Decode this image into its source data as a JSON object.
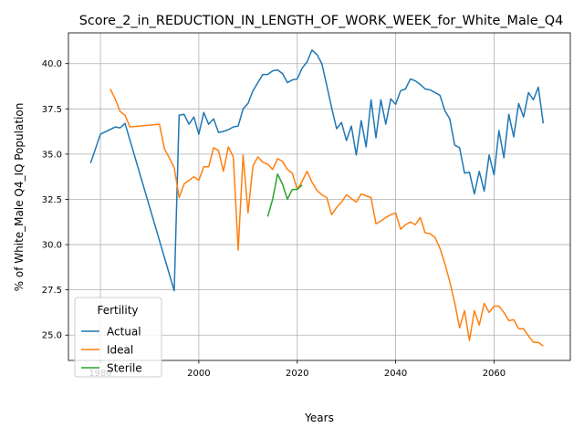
{
  "chart_data": {
    "type": "line",
    "title": "Score_2_in_REDUCTION_IN_LENGTH_OF_WORK_WEEK_for_White_Male_Q4",
    "xlabel": "Years",
    "ylabel": "% of White_Male Q4_IQ Population",
    "xlim": [
      1973.5,
      2075.5
    ],
    "ylim": [
      23.6,
      41.7
    ],
    "xticks": [
      1980,
      2000,
      2020,
      2040,
      2060
    ],
    "yticks": [
      25.0,
      27.5,
      30.0,
      32.5,
      35.0,
      37.5,
      40.0
    ],
    "grid": true,
    "legend": {
      "title": "Fertility",
      "placement": "lower-left"
    },
    "series": [
      {
        "name": "Actual",
        "color": "#1f77b4",
        "x": [
          1978,
          1980,
          1983,
          1984,
          1985,
          1995,
          1996,
          1997,
          1998,
          1999,
          2000,
          2001,
          2002,
          2003,
          2004,
          2005,
          2006,
          2007,
          2008,
          2009,
          2010,
          2011,
          2012,
          2013,
          2014,
          2015,
          2016,
          2017,
          2018,
          2019,
          2020,
          2021,
          2022,
          2023,
          2024,
          2025,
          2026,
          2027,
          2028,
          2029,
          2030,
          2031,
          2032,
          2033,
          2034,
          2035,
          2036,
          2037,
          2038,
          2039,
          2040,
          2041,
          2042,
          2043,
          2044,
          2045,
          2046,
          2047,
          2048,
          2049,
          2050,
          2051,
          2052,
          2053,
          2054,
          2055,
          2056,
          2057,
          2058,
          2059,
          2060,
          2061,
          2062,
          2063,
          2064,
          2065,
          2066,
          2067,
          2068,
          2069,
          2070
        ],
        "y": [
          34.5,
          36.1,
          36.5,
          36.45,
          36.7,
          27.45,
          37.15,
          37.2,
          36.65,
          37.05,
          36.1,
          37.3,
          36.65,
          36.95,
          36.2,
          36.25,
          36.35,
          36.5,
          36.55,
          37.5,
          37.8,
          38.5,
          38.95,
          39.4,
          39.4,
          39.6,
          39.65,
          39.45,
          38.95,
          39.1,
          39.15,
          39.75,
          40.1,
          40.75,
          40.5,
          40.0,
          38.8,
          37.55,
          36.4,
          36.75,
          35.75,
          36.55,
          34.95,
          36.85,
          35.4,
          38.0,
          35.9,
          38.0,
          36.65,
          38.05,
          37.75,
          38.5,
          38.6,
          39.15,
          39.05,
          38.85,
          38.6,
          38.55,
          38.4,
          38.25,
          37.4,
          36.95,
          35.5,
          35.35,
          33.95,
          34.0,
          32.8,
          34.05,
          32.95,
          34.95,
          33.85,
          36.3,
          34.8,
          37.2,
          35.95,
          37.8,
          37.05,
          38.4,
          38.0,
          38.7,
          36.7
        ]
      },
      {
        "name": "Ideal",
        "color": "#ff7f0e",
        "x": [
          1982,
          1983,
          1984,
          1985,
          1986,
          1992,
          1993,
          1994,
          1995,
          1996,
          1997,
          1998,
          1999,
          2000,
          2001,
          2002,
          2003,
          2004,
          2005,
          2006,
          2007,
          2008,
          2009,
          2010,
          2011,
          2012,
          2013,
          2014,
          2015,
          2016,
          2017,
          2018,
          2019,
          2020,
          2021,
          2022,
          2023,
          2024,
          2025,
          2026,
          2027,
          2028,
          2029,
          2030,
          2031,
          2032,
          2033,
          2034,
          2035,
          2036,
          2037,
          2038,
          2039,
          2040,
          2041,
          2042,
          2043,
          2044,
          2045,
          2046,
          2047,
          2048,
          2049,
          2050,
          2051,
          2052,
          2053,
          2054,
          2055,
          2056,
          2057,
          2058,
          2059,
          2060,
          2061,
          2062,
          2063,
          2064,
          2065,
          2066,
          2067,
          2068,
          2069,
          2070
        ],
        "y": [
          38.6,
          38.05,
          37.35,
          37.15,
          36.5,
          36.65,
          35.3,
          34.8,
          34.25,
          32.6,
          33.35,
          33.55,
          33.75,
          33.55,
          34.3,
          34.3,
          35.35,
          35.2,
          34.05,
          35.4,
          34.85,
          29.7,
          34.95,
          31.75,
          34.35,
          34.85,
          34.55,
          34.45,
          34.15,
          34.75,
          34.6,
          34.15,
          33.95,
          33.05,
          33.5,
          34.05,
          33.45,
          33.0,
          32.75,
          32.6,
          31.65,
          32.05,
          32.35,
          32.75,
          32.55,
          32.35,
          32.8,
          32.7,
          32.6,
          31.15,
          31.3,
          31.5,
          31.65,
          31.75,
          30.85,
          31.1,
          31.25,
          31.1,
          31.5,
          30.65,
          30.6,
          30.4,
          29.8,
          28.95,
          27.95,
          26.8,
          25.4,
          26.35,
          24.7,
          26.35,
          25.55,
          26.75,
          26.25,
          26.6,
          26.6,
          26.25,
          25.8,
          25.85,
          25.35,
          25.35,
          24.95,
          24.6,
          24.6,
          24.4
        ]
      },
      {
        "name": "Sterile",
        "color": "#2ca02c",
        "x": [
          2014,
          2015,
          2016,
          2017,
          2018,
          2019,
          2020,
          2021
        ],
        "y": [
          31.55,
          32.5,
          33.9,
          33.35,
          32.5,
          33.05,
          33.05,
          33.3
        ]
      }
    ]
  }
}
